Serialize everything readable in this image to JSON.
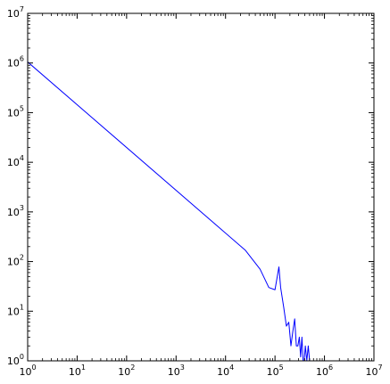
{
  "chart_data": {
    "type": "line",
    "title": "",
    "xlabel": "",
    "ylabel": "",
    "xscale": "log",
    "yscale": "log",
    "xlim": [
      1,
      10000000
    ],
    "ylim": [
      1,
      10000000
    ],
    "grid": false,
    "legend": "none",
    "x_ticks": [
      {
        "base": "10",
        "exp": "0",
        "value": 1
      },
      {
        "base": "10",
        "exp": "1",
        "value": 10
      },
      {
        "base": "10",
        "exp": "2",
        "value": 100
      },
      {
        "base": "10",
        "exp": "3",
        "value": 1000
      },
      {
        "base": "10",
        "exp": "4",
        "value": 10000
      },
      {
        "base": "10",
        "exp": "5",
        "value": 100000
      },
      {
        "base": "10",
        "exp": "6",
        "value": 1000000
      },
      {
        "base": "10",
        "exp": "7",
        "value": 10000000
      }
    ],
    "y_ticks": [
      {
        "base": "10",
        "exp": "0",
        "value": 1
      },
      {
        "base": "10",
        "exp": "1",
        "value": 10
      },
      {
        "base": "10",
        "exp": "2",
        "value": 100
      },
      {
        "base": "10",
        "exp": "3",
        "value": 1000
      },
      {
        "base": "10",
        "exp": "4",
        "value": 10000
      },
      {
        "base": "10",
        "exp": "5",
        "value": 100000
      },
      {
        "base": "10",
        "exp": "6",
        "value": 1000000
      },
      {
        "base": "10",
        "exp": "7",
        "value": 10000000
      }
    ],
    "series": [
      {
        "color": "#0000ff",
        "x": [
          1,
          25000,
          50000,
          75000,
          100000,
          120000,
          130000,
          150000,
          170000,
          190000,
          210000,
          230000,
          250000,
          270000,
          290000,
          310000,
          330000,
          350000,
          370000,
          390000,
          410000,
          440000,
          470000,
          500000,
          530000,
          560000,
          600000
        ],
        "y": [
          1050000,
          170,
          70,
          30,
          27,
          78,
          30,
          12,
          5,
          6,
          2,
          4,
          7,
          2,
          2,
          3,
          1.2,
          3,
          1,
          1,
          2,
          1,
          2,
          1,
          1,
          1,
          1
        ]
      }
    ]
  }
}
